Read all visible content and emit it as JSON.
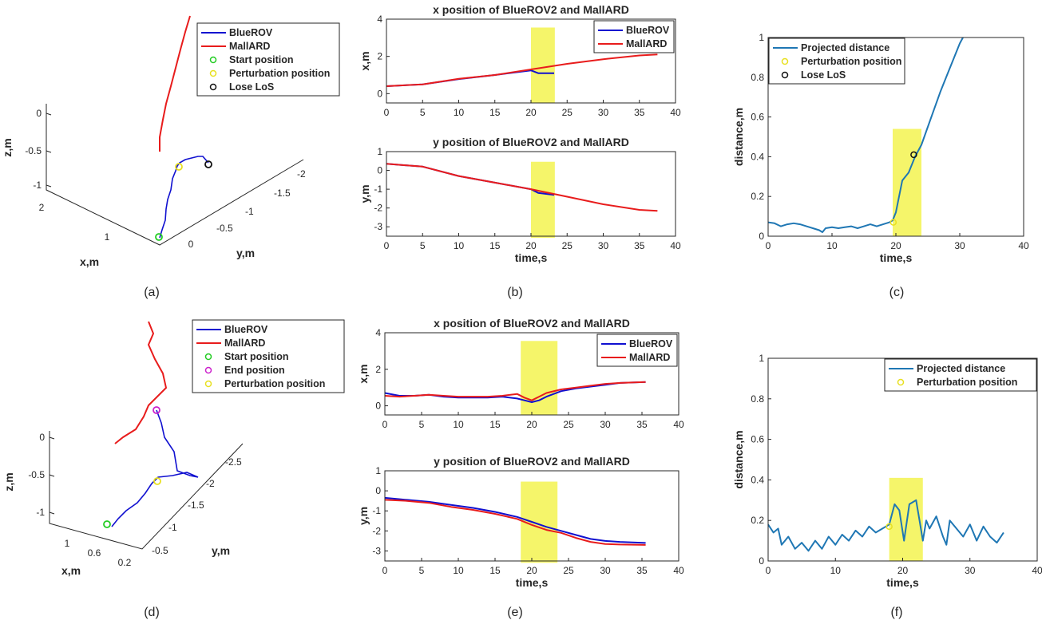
{
  "colors": {
    "blue": "#1010d0",
    "red": "#e81c1c",
    "proj": "#1f77b4",
    "highlight": "#f4f45a",
    "start": "#22cc22",
    "end": "#cc22cc",
    "perturb": "#e8e020",
    "los": "#111111"
  },
  "captions": [
    "(a)",
    "(b)",
    "(c)",
    "(d)",
    "(e)",
    "(f)"
  ],
  "chart_data": [
    {
      "type": "line",
      "panel": "(a)",
      "projection": "3d",
      "xlabel": "x,m",
      "ylabel": "y,m",
      "zlabel": "z,m",
      "x_ticks": [
        "2",
        "1",
        "0"
      ],
      "y_ticks": [
        "-2",
        "-1.5",
        "-1",
        "-0.5"
      ],
      "z_ticks": [
        "0",
        "-0.5",
        "-1"
      ],
      "legend": [
        "BlueROV",
        "MallARD",
        "Start position",
        "Perturbation position",
        "Lose LoS"
      ]
    },
    {
      "type": "line",
      "panel": "(b) top",
      "title": "x position of BlueROV2 and MallARD",
      "xlabel": "",
      "ylabel": "x,m",
      "xlim": [
        0,
        40
      ],
      "ylim": [
        -0.5,
        4
      ],
      "x_ticks": [
        "0",
        "5",
        "10",
        "15",
        "20",
        "25",
        "30",
        "35",
        "40"
      ],
      "y_ticks": [
        "0",
        "2",
        "4"
      ],
      "highlight": [
        20,
        23.3
      ],
      "series": [
        {
          "name": "BlueROV",
          "x": [
            0,
            5,
            10,
            15,
            20,
            21,
            23.2
          ],
          "y": [
            0.4,
            0.5,
            0.78,
            1.0,
            1.25,
            1.1,
            1.1
          ]
        },
        {
          "name": "MallARD",
          "x": [
            0,
            5,
            10,
            15,
            20,
            25,
            30,
            35,
            37.5
          ],
          "y": [
            0.4,
            0.5,
            0.8,
            1.0,
            1.3,
            1.6,
            1.85,
            2.05,
            2.1
          ]
        }
      ],
      "legend": [
        "BlueROV",
        "MallARD"
      ]
    },
    {
      "type": "line",
      "panel": "(b) bottom",
      "title": "y position of BlueROV2 and MallARD",
      "xlabel": "time,s",
      "ylabel": "y,m",
      "xlim": [
        0,
        40
      ],
      "ylim": [
        -3.5,
        1
      ],
      "x_ticks": [
        "0",
        "5",
        "10",
        "15",
        "20",
        "25",
        "30",
        "35",
        "40"
      ],
      "y_ticks": [
        "1",
        "0",
        "-1",
        "-2",
        "-3"
      ],
      "highlight": [
        20,
        23.3
      ],
      "series": [
        {
          "name": "BlueROV",
          "x": [
            0,
            5,
            10,
            15,
            20,
            21,
            23.2
          ],
          "y": [
            0.35,
            0.2,
            -0.3,
            -0.65,
            -1.0,
            -1.2,
            -1.3
          ]
        },
        {
          "name": "MallARD",
          "x": [
            0,
            5,
            10,
            15,
            20,
            25,
            30,
            35,
            37.5
          ],
          "y": [
            0.35,
            0.2,
            -0.3,
            -0.65,
            -1.0,
            -1.4,
            -1.8,
            -2.1,
            -2.15
          ]
        }
      ]
    },
    {
      "type": "line",
      "panel": "(c)",
      "xlabel": "time,s",
      "ylabel": "distance,m",
      "xlim": [
        0,
        40
      ],
      "ylim": [
        0,
        1
      ],
      "x_ticks": [
        "0",
        "10",
        "20",
        "30",
        "40"
      ],
      "y_ticks": [
        "0",
        "0.2",
        "0.4",
        "0.6",
        "0.8",
        "1"
      ],
      "highlight": [
        19.5,
        24
      ],
      "series": [
        {
          "name": "Projected distance",
          "x": [
            0,
            1,
            2,
            3,
            4,
            5,
            6,
            7,
            8,
            8.5,
            9,
            10,
            11,
            12,
            13,
            14,
            15,
            16,
            17,
            18,
            19,
            19.5,
            20,
            21,
            22,
            23,
            24,
            25,
            26,
            27,
            28,
            29,
            30,
            30.5
          ],
          "y": [
            0.07,
            0.065,
            0.05,
            0.06,
            0.065,
            0.06,
            0.05,
            0.04,
            0.03,
            0.02,
            0.04,
            0.045,
            0.04,
            0.045,
            0.05,
            0.04,
            0.05,
            0.06,
            0.05,
            0.06,
            0.07,
            0.08,
            0.12,
            0.28,
            0.32,
            0.4,
            0.46,
            0.55,
            0.64,
            0.73,
            0.81,
            0.89,
            0.97,
            1.0
          ]
        }
      ],
      "markers": [
        {
          "label": "Perturbation position",
          "x": 19.6,
          "y": 0.07
        },
        {
          "label": "Lose LoS",
          "x": 22.8,
          "y": 0.41
        }
      ],
      "legend": [
        "Projected distance",
        "Perturbation position",
        "Lose LoS"
      ]
    },
    {
      "type": "line",
      "panel": "(d)",
      "projection": "3d",
      "xlabel": "x,m",
      "ylabel": "y,m",
      "zlabel": "z,m",
      "x_ticks": [
        "1",
        "0.6",
        "0.2"
      ],
      "y_ticks": [
        "-2.5",
        "-2",
        "-1.5",
        "-1",
        "-0.5"
      ],
      "z_ticks": [
        "0",
        "-0.5",
        "-1"
      ],
      "legend": [
        "BlueROV",
        "MallARD",
        "Start position",
        "End position",
        "Perturbation position"
      ]
    },
    {
      "type": "line",
      "panel": "(e) top",
      "title": "x position of BlueROV2 and MallARD",
      "xlabel": "",
      "ylabel": "x,m",
      "xlim": [
        0,
        40
      ],
      "ylim": [
        -0.5,
        4
      ],
      "x_ticks": [
        "0",
        "5",
        "10",
        "15",
        "20",
        "25",
        "30",
        "35",
        "40"
      ],
      "y_ticks": [
        "0",
        "2",
        "4"
      ],
      "highlight": [
        18.5,
        23.5
      ],
      "series": [
        {
          "name": "BlueROV",
          "x": [
            0,
            2,
            4,
            6,
            8,
            10,
            12,
            14,
            16,
            18,
            19,
            20,
            21,
            22,
            24,
            26,
            28,
            30,
            32,
            35.5
          ],
          "y": [
            0.7,
            0.55,
            0.55,
            0.6,
            0.5,
            0.45,
            0.45,
            0.45,
            0.5,
            0.4,
            0.3,
            0.2,
            0.3,
            0.5,
            0.8,
            0.95,
            1.05,
            1.15,
            1.25,
            1.3
          ]
        },
        {
          "name": "MallARD",
          "x": [
            0,
            2,
            4,
            6,
            8,
            10,
            12,
            14,
            16,
            18,
            19,
            20,
            21,
            22,
            24,
            26,
            28,
            30,
            32,
            35.5
          ],
          "y": [
            0.55,
            0.5,
            0.55,
            0.6,
            0.55,
            0.5,
            0.5,
            0.5,
            0.55,
            0.65,
            0.45,
            0.3,
            0.5,
            0.7,
            0.9,
            1.0,
            1.1,
            1.2,
            1.25,
            1.3
          ]
        }
      ],
      "legend": [
        "BlueROV",
        "MallARD"
      ]
    },
    {
      "type": "line",
      "panel": "(e) bottom",
      "title": "y position of BlueROV2 and MallARD",
      "xlabel": "time,s",
      "ylabel": "y,m",
      "xlim": [
        0,
        40
      ],
      "ylim": [
        -3.5,
        1
      ],
      "x_ticks": [
        "0",
        "5",
        "10",
        "15",
        "20",
        "25",
        "30",
        "35",
        "40"
      ],
      "y_ticks": [
        "1",
        "0",
        "-1",
        "-2",
        "-3"
      ],
      "highlight": [
        18.5,
        23.5
      ],
      "series": [
        {
          "name": "BlueROV",
          "x": [
            0,
            3,
            6,
            9,
            12,
            15,
            18,
            20,
            22,
            24,
            26,
            28,
            30,
            32,
            35.5
          ],
          "y": [
            -0.35,
            -0.45,
            -0.55,
            -0.7,
            -0.85,
            -1.05,
            -1.3,
            -1.55,
            -1.8,
            -2.0,
            -2.2,
            -2.4,
            -2.5,
            -2.55,
            -2.6
          ]
        },
        {
          "name": "MallARD",
          "x": [
            0,
            3,
            6,
            9,
            12,
            15,
            18,
            20,
            22,
            24,
            26,
            28,
            30,
            32,
            35.5
          ],
          "y": [
            -0.45,
            -0.5,
            -0.6,
            -0.8,
            -0.95,
            -1.15,
            -1.4,
            -1.7,
            -1.95,
            -2.1,
            -2.35,
            -2.55,
            -2.65,
            -2.68,
            -2.7
          ]
        }
      ]
    },
    {
      "type": "line",
      "panel": "(f)",
      "xlabel": "time,s",
      "ylabel": "distance,m",
      "xlim": [
        0,
        40
      ],
      "ylim": [
        0,
        1
      ],
      "x_ticks": [
        "0",
        "10",
        "20",
        "30",
        "40"
      ],
      "y_ticks": [
        "0",
        "0.2",
        "0.4",
        "0.6",
        "0.8",
        "1"
      ],
      "highlight": [
        18,
        23
      ],
      "series": [
        {
          "name": "Projected distance",
          "x": [
            0,
            0.8,
            1.5,
            2,
            3,
            4,
            5,
            6,
            7,
            8,
            9,
            10,
            11,
            12,
            13,
            14,
            15,
            16,
            17,
            18,
            18.8,
            19.5,
            20.2,
            21,
            22,
            22.5,
            23,
            23.5,
            24,
            25,
            26,
            26.5,
            27,
            28,
            29,
            30,
            31,
            32,
            33,
            34,
            35
          ],
          "y": [
            0.18,
            0.14,
            0.16,
            0.08,
            0.12,
            0.06,
            0.09,
            0.05,
            0.1,
            0.06,
            0.12,
            0.08,
            0.13,
            0.1,
            0.15,
            0.12,
            0.17,
            0.14,
            0.16,
            0.18,
            0.28,
            0.25,
            0.1,
            0.28,
            0.3,
            0.2,
            0.1,
            0.2,
            0.16,
            0.22,
            0.12,
            0.08,
            0.2,
            0.16,
            0.12,
            0.18,
            0.1,
            0.17,
            0.12,
            0.09,
            0.14
          ]
        }
      ],
      "markers": [
        {
          "label": "Perturbation position",
          "x": 18,
          "y": 0.17
        }
      ],
      "legend": [
        "Projected distance",
        "Perturbation position"
      ]
    }
  ]
}
